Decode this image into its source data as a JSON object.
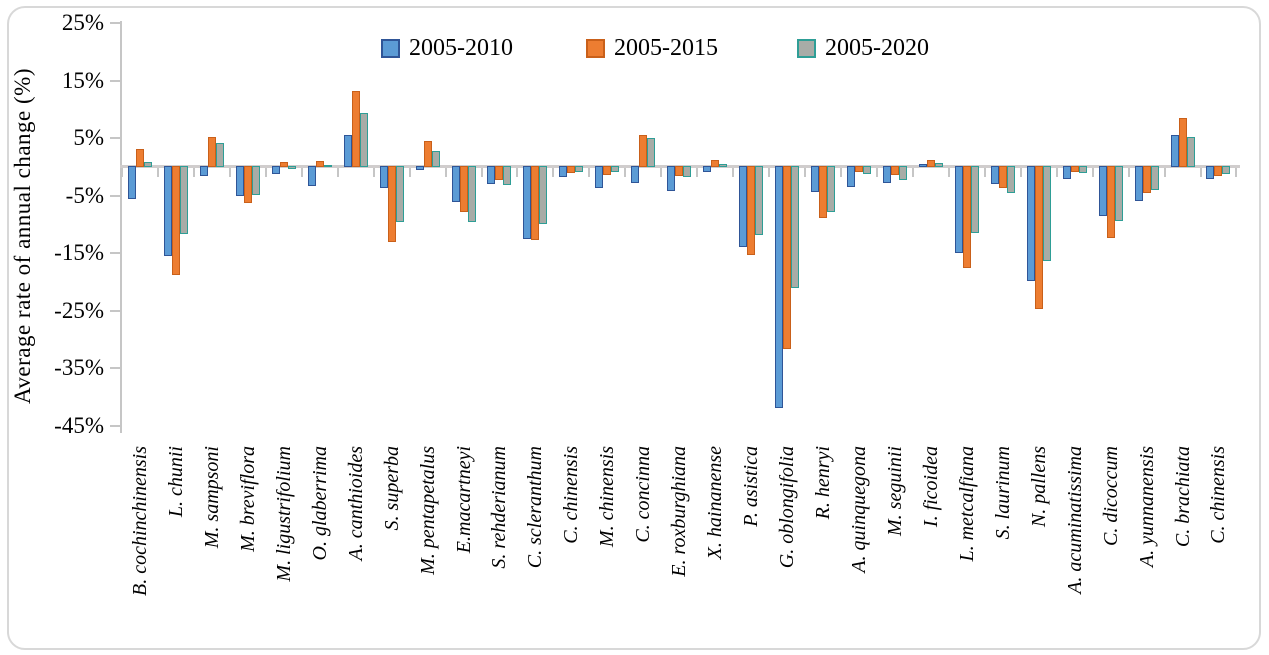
{
  "y_axis": {
    "title": "Average rate of annual change (%)",
    "tick_labels": [
      "25%",
      "15%",
      "5%",
      "-5%",
      "-15%",
      "-25%",
      "-35%",
      "-45%"
    ],
    "tick_values": [
      25,
      15,
      5,
      -5,
      -15,
      -25,
      -35,
      -45
    ],
    "max": 25,
    "min": -45
  },
  "chart_data": {
    "type": "bar",
    "title": "",
    "xlabel": "",
    "ylabel": "Average rate of annual change (%)",
    "ylim": [
      -45,
      25
    ],
    "grid": false,
    "legend_position": "top",
    "categories": [
      "B. cochinchinensis",
      "L. chunii",
      "M. sampsoni",
      "M. breviflora",
      "M. ligustrifolium",
      "O. glaberrima",
      "A. canthioides",
      "S. superba",
      "M. pentapetalus",
      "E.macartneyi",
      "S. rehderianum",
      "C. scleranthum",
      "C. chinensis",
      "M. chinensis",
      "C. concinna",
      "E. roxburghiana",
      "X. hainanense",
      "P. asistica",
      "G. oblongifolia",
      "R. henryi",
      "A. quinquegona",
      "M. seguinii",
      "I. ficoidea",
      "L. metcalfiana",
      "S. laurinum",
      "N. pallens",
      "A. acuminatissima",
      "C. dicoccum",
      "A. yunnanensis",
      "C. brachiata",
      "C. chinensis"
    ],
    "series": [
      {
        "name": "2005-2010",
        "fill": "#5B9BD5",
        "border": "#2F5597",
        "values": [
          -5.8,
          -15.6,
          -1.7,
          -5.2,
          -1.4,
          -3.4,
          5.6,
          -3.9,
          -0.7,
          -6.3,
          -3.1,
          -12.7,
          -1.9,
          -3.8,
          -3.0,
          -4.4,
          -1.1,
          -14.0,
          -42.0,
          -4.6,
          -3.6,
          -2.9,
          0.6,
          -15.1,
          -3.1,
          -20.0,
          -2.2,
          -8.7,
          -6.0,
          5.6,
          -2.2
        ]
      },
      {
        "name": "2005-2015",
        "fill": "#ED7D31",
        "border": "#C9601A",
        "values": [
          3.2,
          -19.0,
          5.2,
          -6.5,
          0.9,
          1.0,
          13.3,
          -13.3,
          4.5,
          -8.0,
          -2.5,
          -12.8,
          -1.3,
          -1.6,
          5.5,
          -1.8,
          1.2,
          -15.5,
          -31.8,
          -9.1,
          -1.0,
          -1.6,
          1.3,
          -17.7,
          -3.9,
          -24.8,
          -1.0,
          -12.6,
          -4.7,
          8.5,
          -1.7
        ]
      },
      {
        "name": "2005-2020",
        "fill": "#A8ACA7",
        "border": "#2E9E96",
        "values": [
          0.8,
          -11.9,
          4.2,
          -5.0,
          -0.4,
          0.3,
          9.4,
          -9.7,
          2.7,
          -9.8,
          -3.3,
          -10.0,
          -1.1,
          -1.0,
          5.0,
          -1.9,
          0.5,
          -12.0,
          -21.2,
          -8.0,
          -1.4,
          -2.5,
          0.7,
          -11.6,
          -4.7,
          -16.6,
          -1.2,
          -9.6,
          -4.2,
          5.2,
          -1.4
        ]
      }
    ]
  }
}
